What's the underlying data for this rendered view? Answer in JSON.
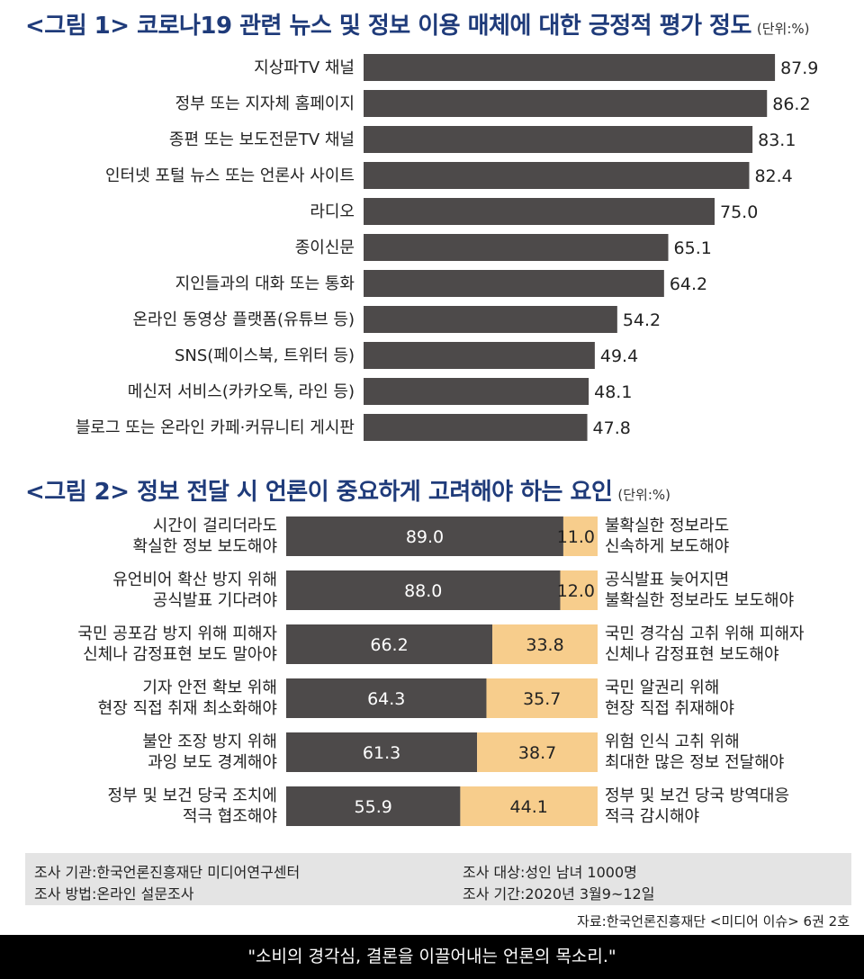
{
  "fig1": {
    "title": "<그림 1> 코로나19 관련 뉴스 및 정보 이용 매체에 대한 긍정적 평가 정도",
    "unit": "(단위:%)"
  },
  "fig2": {
    "title": "<그림 2> 정보 전달 시 언론이 중요하게 고려해야 하는 요인",
    "unit": "(단위:%)"
  },
  "colors": {
    "title": "#1f3b7a",
    "bar_dark": "#4d4a4a",
    "bar_light": "#f7cd8c",
    "info_bg": "#e4e4e4",
    "footer_bg": "#000000"
  },
  "chart_data": [
    {
      "type": "bar",
      "orientation": "horizontal",
      "categories": [
        "지상파TV 채널",
        "정부 또는 지자체 홈페이지",
        "종편 또는 보도전문TV 채널",
        "인터넷 포털 뉴스 또는 언론사 사이트",
        "라디오",
        "종이신문",
        "지인들과의 대화 또는 통화",
        "온라인 동영상 플랫폼(유튜브 등)",
        "SNS(페이스북, 트위터 등)",
        "메신저 서비스(카카오톡, 라인 등)",
        "블로그 또는 온라인 카페·커뮤니티 게시판"
      ],
      "values": [
        87.9,
        86.2,
        83.1,
        82.4,
        75.0,
        65.1,
        64.2,
        54.2,
        49.4,
        48.1,
        47.8
      ],
      "value_labels": [
        "87.9",
        "86.2",
        "83.1",
        "82.4",
        "75.0",
        "65.1",
        "64.2",
        "54.2",
        "49.4",
        "48.1",
        "47.8"
      ],
      "xlim": [
        0,
        100
      ]
    },
    {
      "type": "bar",
      "orientation": "horizontal",
      "stacked": true,
      "categories_left": [
        [
          "시간이 걸리더라도",
          "확실한 정보 보도해야"
        ],
        [
          "유언비어 확산 방지 위해",
          "공식발표 기다려야"
        ],
        [
          "국민 공포감 방지 위해 피해자",
          "신체나 감정표현 보도 말아야"
        ],
        [
          "기자 안전 확보 위해",
          "현장 직접 취재 최소화해야"
        ],
        [
          "불안 조장 방지 위해",
          "과잉 보도 경계해야"
        ],
        [
          "정부 및 보건 당국 조치에",
          "적극 협조해야"
        ]
      ],
      "categories_right": [
        [
          "불확실한 정보라도",
          "신속하게 보도해야"
        ],
        [
          "공식발표 늦어지면",
          "불확실한 정보라도 보도해야"
        ],
        [
          "국민 경각심 고취 위해 피해자",
          "신체나 감정표현 보도해야"
        ],
        [
          "국민 알권리 위해",
          "현장 직접 취재해야"
        ],
        [
          "위험 인식 고취 위해",
          "최대한 많은 정보 전달해야"
        ],
        [
          "정부 및 보건 당국 방역대응",
          "적극 감시해야"
        ]
      ],
      "series": [
        {
          "values": [
            89.0,
            88.0,
            66.2,
            64.3,
            61.3,
            55.9
          ],
          "labels": [
            "89.0",
            "88.0",
            "66.2",
            "64.3",
            "61.3",
            "55.9"
          ]
        },
        {
          "values": [
            11.0,
            12.0,
            33.8,
            35.7,
            38.7,
            44.1
          ],
          "labels": [
            "11.0",
            "12.0",
            "33.8",
            "35.7",
            "38.7",
            "44.1"
          ]
        }
      ],
      "xlim": [
        0,
        100
      ]
    }
  ],
  "info": {
    "agency": "조사 기관:한국언론진흥재단 미디어연구센터",
    "method": "조사 방법:온라인 설문조사",
    "target": "조사 대상:성인 남녀 1000명",
    "period": "조사 기간:2020년 3월9~12일"
  },
  "source": "자료:한국언론진흥재단 <미디어 이슈> 6권 2호",
  "footer": "\"소비의 경각심, 결론을 이끌어내는 언론의 목소리.\""
}
